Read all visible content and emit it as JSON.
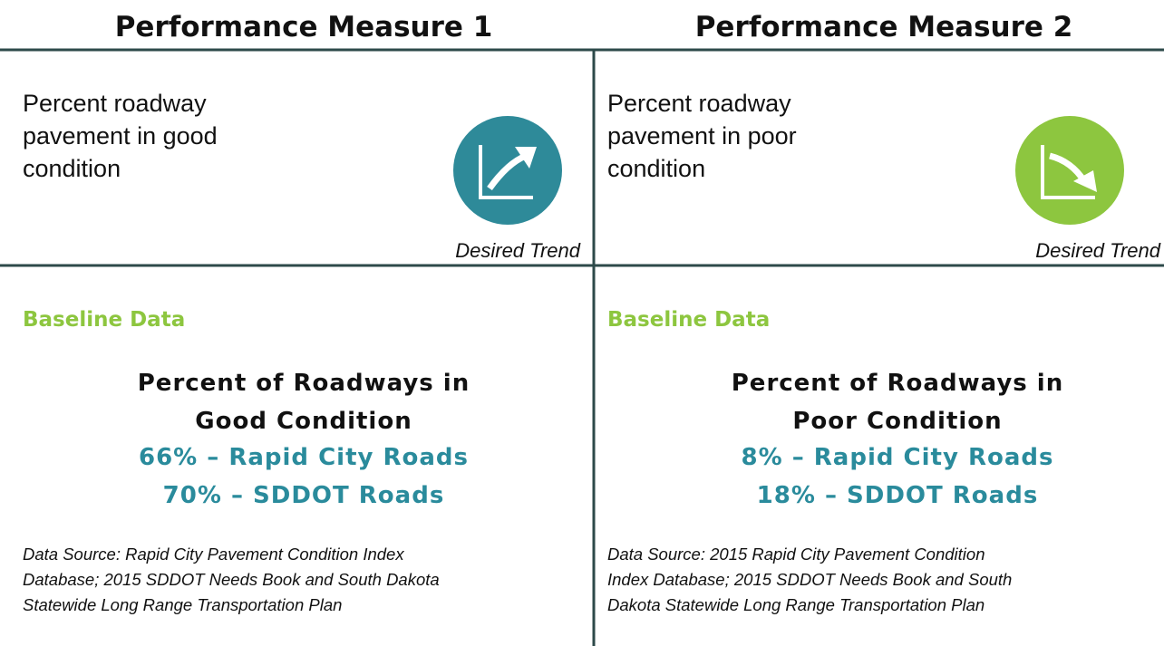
{
  "panels": [
    {
      "title": "Performance Measure 1",
      "description": [
        "Percent roadway",
        "pavement in good",
        "condition"
      ],
      "trend_label": "Desired Trend",
      "baseline_label": "Baseline Data",
      "heading": [
        "Percent of Roadways in",
        "Good Condition"
      ],
      "figures": [
        "66% – Rapid City Roads",
        "70% – SDDOT Roads"
      ],
      "source": [
        "Data Source:  Rapid City Pavement Condition Index",
        "Database; 2015 SDDOT Needs Book and South Dakota",
        "Statewide Long Range Transportation Plan"
      ]
    },
    {
      "title": "Performance Measure 2",
      "description": [
        "Percent roadway",
        "pavement in poor",
        "condition"
      ],
      "trend_label": "Desired Trend",
      "baseline_label": "Baseline Data",
      "heading": [
        "Percent of Roadways in",
        "Poor Condition"
      ],
      "figures": [
        "8% – Rapid City Roads",
        "18% – SDDOT Roads"
      ],
      "source": [
        "Data Source:  2015 Rapid City Pavement Condition",
        "Index Database; 2015 SDDOT Needs Book and South",
        "Dakota Statewide Long Range Transportation Plan"
      ]
    }
  ]
}
